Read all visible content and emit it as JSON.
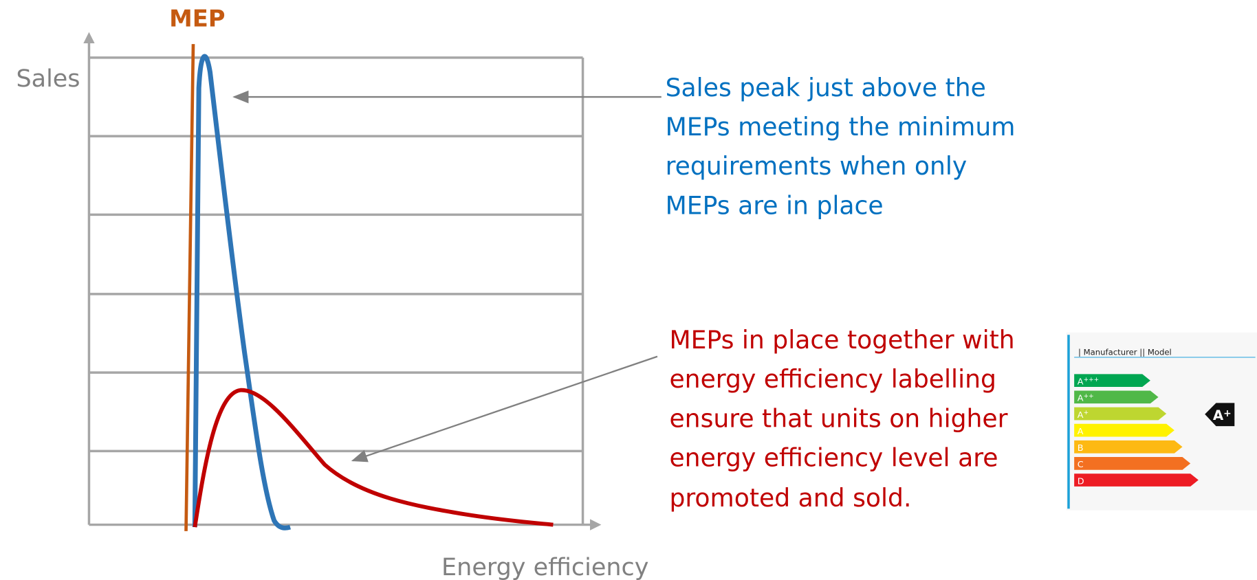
{
  "chart": {
    "mep_label": "MEP",
    "y_axis_label": "Sales",
    "x_axis_label": "Energy efficiency"
  },
  "annotations": [
    {
      "lines": [
        "Sales peak just above the",
        "MEPs meeting the minimum",
        "requirements when only",
        "MEPs are in place"
      ]
    },
    {
      "lines": [
        "MEPs in place together with",
        "energy efficiency labelling",
        "ensure that units on higher",
        "energy efficiency level are",
        "promoted and sold."
      ]
    }
  ],
  "energy_label": {
    "header": "| Manufacturer || Model",
    "classes": [
      {
        "letter": "A",
        "sup": "+++"
      },
      {
        "letter": "A",
        "sup": "++"
      },
      {
        "letter": "A",
        "sup": "+"
      },
      {
        "letter": "A",
        "sup": ""
      },
      {
        "letter": "B",
        "sup": ""
      },
      {
        "letter": "C",
        "sup": ""
      },
      {
        "letter": "D",
        "sup": ""
      }
    ],
    "rating": {
      "letter": "A",
      "sup": "+"
    }
  }
}
